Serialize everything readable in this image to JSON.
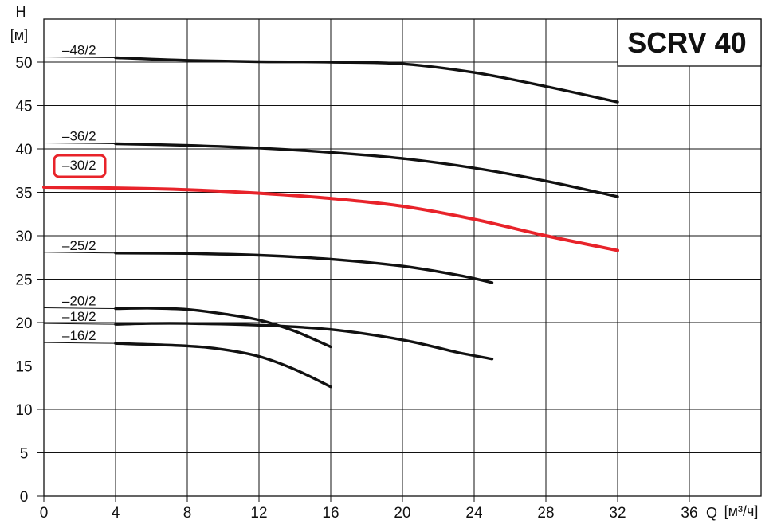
{
  "chart_data": {
    "type": "line",
    "title": "SCRV 40",
    "ylabel": "H",
    "yunit": "[м]",
    "xlabel": "Q",
    "xunit": "[м³/ч]",
    "xlim": [
      0,
      40
    ],
    "ylim": [
      0,
      55
    ],
    "x_ticks": [
      "0",
      "4",
      "8",
      "12",
      "16",
      "20",
      "24",
      "28",
      "32",
      "36"
    ],
    "y_ticks": [
      "0",
      "5",
      "10",
      "15",
      "20",
      "25",
      "30",
      "35",
      "40",
      "45",
      "50"
    ],
    "grid": true,
    "highlight_color": "#e8232a",
    "series": [
      {
        "name": "–48/2",
        "highlight": false,
        "points": [
          [
            4,
            50.5
          ],
          [
            8,
            50.2
          ],
          [
            12,
            50.05
          ],
          [
            16,
            50.0
          ],
          [
            20,
            49.8
          ],
          [
            24,
            48.8
          ],
          [
            28,
            47.2
          ],
          [
            32,
            45.4
          ]
        ]
      },
      {
        "name": "–36/2",
        "highlight": false,
        "points": [
          [
            4,
            40.6
          ],
          [
            8,
            40.4
          ],
          [
            12,
            40.1
          ],
          [
            16,
            39.6
          ],
          [
            20,
            38.9
          ],
          [
            24,
            37.8
          ],
          [
            28,
            36.3
          ],
          [
            32,
            34.5
          ]
        ]
      },
      {
        "name": "–30/2",
        "highlight": true,
        "points": [
          [
            0,
            35.6
          ],
          [
            4,
            35.5
          ],
          [
            8,
            35.3
          ],
          [
            12,
            34.9
          ],
          [
            16,
            34.3
          ],
          [
            20,
            33.4
          ],
          [
            24,
            31.9
          ],
          [
            28,
            30.0
          ],
          [
            32,
            28.3
          ]
        ]
      },
      {
        "name": "–25/2",
        "highlight": false,
        "points": [
          [
            4,
            28.0
          ],
          [
            8,
            27.95
          ],
          [
            12,
            27.75
          ],
          [
            16,
            27.3
          ],
          [
            20,
            26.5
          ],
          [
            23,
            25.5
          ],
          [
            25,
            24.6
          ]
        ]
      },
      {
        "name": "–20/2",
        "highlight": false,
        "points": [
          [
            4,
            21.6
          ],
          [
            6,
            21.65
          ],
          [
            8,
            21.5
          ],
          [
            10,
            21.0
          ],
          [
            12,
            20.3
          ],
          [
            14,
            19.0
          ],
          [
            16,
            17.2
          ]
        ]
      },
      {
        "name": "–18/2",
        "highlight": false,
        "points": [
          [
            4,
            19.8
          ],
          [
            6,
            19.9
          ],
          [
            8,
            19.9
          ],
          [
            12,
            19.7
          ],
          [
            16,
            19.2
          ],
          [
            20,
            18.0
          ],
          [
            23,
            16.6
          ],
          [
            25,
            15.8
          ]
        ]
      },
      {
        "name": "–16/2",
        "highlight": false,
        "points": [
          [
            4,
            17.6
          ],
          [
            8,
            17.3
          ],
          [
            10,
            16.9
          ],
          [
            12,
            16.1
          ],
          [
            14,
            14.6
          ],
          [
            16,
            12.6
          ]
        ]
      }
    ]
  }
}
